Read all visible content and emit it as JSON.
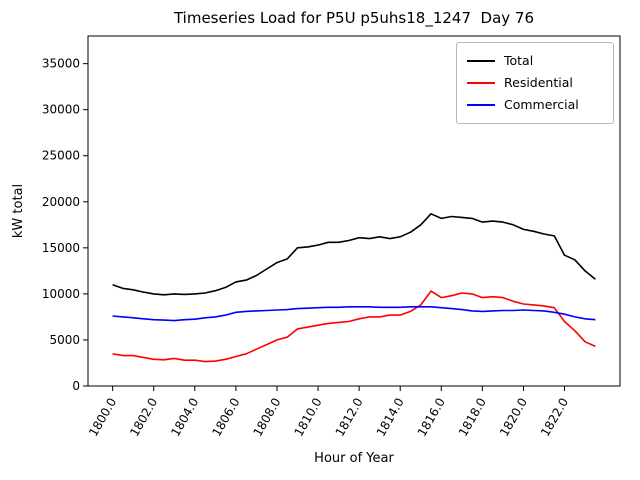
{
  "chart_data": {
    "type": "line",
    "title": "Timeseries Load for P5U p5uhs18_1247  Day 76",
    "xlabel": "Hour of Year",
    "ylabel": "kW total",
    "xlim": [
      1798.8,
      1824.7
    ],
    "ylim": [
      0,
      38000
    ],
    "grid": false,
    "legend_position": "upper right",
    "xticks": [
      1800,
      1802,
      1804,
      1806,
      1808,
      1810,
      1812,
      1814,
      1816,
      1818,
      1820,
      1822
    ],
    "xtick_labels": [
      "1800.0",
      "1802.0",
      "1804.0",
      "1806.0",
      "1808.0",
      "1810.0",
      "1812.0",
      "1814.0",
      "1816.0",
      "1818.0",
      "1820.0",
      "1822.0"
    ],
    "yticks": [
      0,
      5000,
      10000,
      15000,
      20000,
      25000,
      30000,
      35000
    ],
    "ytick_labels": [
      "0",
      "5000",
      "10000",
      "15000",
      "20000",
      "25000",
      "30000",
      "35000"
    ],
    "x": [
      1800.0,
      1800.5,
      1801.0,
      1801.5,
      1802.0,
      1802.5,
      1803.0,
      1803.5,
      1804.0,
      1804.5,
      1805.0,
      1805.5,
      1806.0,
      1806.5,
      1807.0,
      1807.5,
      1808.0,
      1808.5,
      1809.0,
      1809.5,
      1810.0,
      1810.5,
      1811.0,
      1811.5,
      1812.0,
      1812.5,
      1813.0,
      1813.5,
      1814.0,
      1814.5,
      1815.0,
      1815.5,
      1816.0,
      1816.5,
      1817.0,
      1817.5,
      1818.0,
      1818.5,
      1819.0,
      1819.5,
      1820.0,
      1820.5,
      1821.0,
      1821.5,
      1822.0,
      1822.5,
      1823.0,
      1823.5
    ],
    "series": [
      {
        "name": "Total",
        "color": "#000000",
        "values": [
          11000,
          10600,
          10450,
          10200,
          10000,
          9900,
          10000,
          9950,
          10000,
          10100,
          10350,
          10700,
          11300,
          11500,
          12000,
          12700,
          13400,
          13800,
          15000,
          15100,
          15300,
          15600,
          15600,
          15800,
          16100,
          16000,
          16200,
          16000,
          16200,
          16700,
          17500,
          18700,
          18200,
          18400,
          18300,
          18200,
          17800,
          17900,
          17800,
          17500,
          17000,
          16800,
          16500,
          16300,
          14200,
          13700,
          12500,
          11600
        ]
      },
      {
        "name": "Residential",
        "color": "#ff0000",
        "values": [
          3500,
          3300,
          3300,
          3100,
          2900,
          2850,
          3000,
          2800,
          2800,
          2650,
          2700,
          2900,
          3200,
          3500,
          4000,
          4500,
          5000,
          5300,
          6200,
          6400,
          6600,
          6800,
          6900,
          7000,
          7300,
          7500,
          7500,
          7700,
          7700,
          8100,
          8800,
          10300,
          9600,
          9800,
          10100,
          10000,
          9600,
          9700,
          9600,
          9200,
          8900,
          8800,
          8700,
          8500,
          7000,
          6000,
          4800,
          4300
        ]
      },
      {
        "name": "Commercial",
        "color": "#0000ff",
        "values": [
          7600,
          7500,
          7400,
          7300,
          7200,
          7150,
          7100,
          7200,
          7250,
          7400,
          7500,
          7700,
          8000,
          8100,
          8150,
          8200,
          8250,
          8300,
          8400,
          8450,
          8500,
          8550,
          8550,
          8600,
          8600,
          8600,
          8550,
          8550,
          8550,
          8600,
          8600,
          8600,
          8500,
          8400,
          8300,
          8150,
          8100,
          8150,
          8200,
          8200,
          8250,
          8200,
          8150,
          8000,
          7800,
          7500,
          7300,
          7200
        ]
      }
    ]
  }
}
